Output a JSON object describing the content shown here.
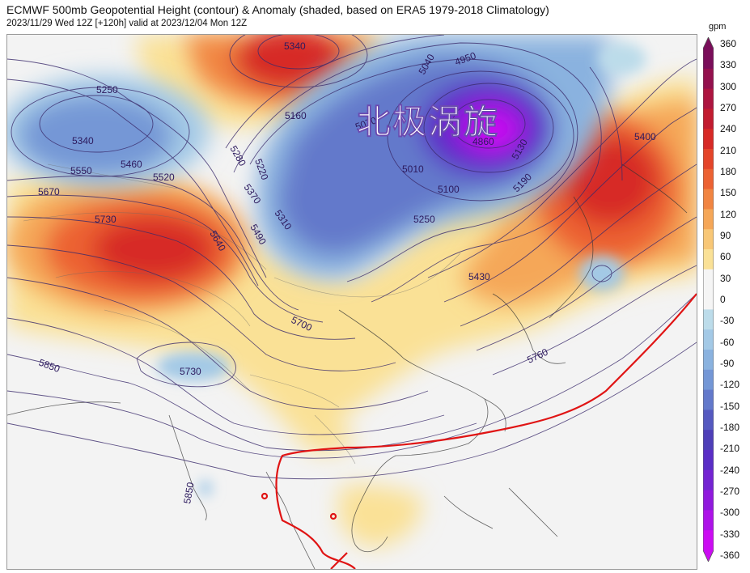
{
  "header": {
    "title": "ECMWF 500mb Geopotential Height (contour) & Anomaly (shaded, based on ERA5 1979-2018 Climatology)",
    "subtitle": "2023/11/29 Wed 12Z [+120h] valid at 2023/12/04 Mon 12Z"
  },
  "annotation": {
    "vortex_label": "北极涡旋"
  },
  "colorbar": {
    "unit": "gpm",
    "ticks": [
      "360",
      "330",
      "300",
      "270",
      "240",
      "210",
      "180",
      "150",
      "120",
      "90",
      "60",
      "30",
      "0",
      "-30",
      "-60",
      "-90",
      "-120",
      "-150",
      "-180",
      "-210",
      "-240",
      "-270",
      "-300",
      "-330",
      "-360"
    ],
    "colors": [
      "#7a0e5a",
      "#94114e",
      "#ad1540",
      "#c21c30",
      "#d72a26",
      "#e4452a",
      "#ec6233",
      "#f18542",
      "#f5a758",
      "#f8c776",
      "#fae196",
      "#f5f5f5",
      "#f5f5f5",
      "#bcdcea",
      "#a3c9e6",
      "#8ab2df",
      "#7497d6",
      "#6379cb",
      "#5559c0",
      "#4e3fb8",
      "#5a2dc6",
      "#7424d2",
      "#9019dd",
      "#ad12e8",
      "#cb0cf2"
    ]
  },
  "contour_labels": [
    {
      "id": "c5340-ne",
      "text": "5340"
    },
    {
      "id": "c5250-w",
      "text": "5250"
    },
    {
      "id": "c5340-w",
      "text": "5340"
    },
    {
      "id": "c5160",
      "text": "5160"
    },
    {
      "id": "c5070",
      "text": "5070"
    },
    {
      "id": "c4950",
      "text": "4950"
    },
    {
      "id": "c5040",
      "text": "5040"
    },
    {
      "id": "c4860",
      "text": "4860"
    },
    {
      "id": "c5010",
      "text": "5010"
    },
    {
      "id": "c5100",
      "text": "5100"
    },
    {
      "id": "c5130",
      "text": "5130"
    },
    {
      "id": "c5190",
      "text": "5190"
    },
    {
      "id": "c5400",
      "text": "5400"
    },
    {
      "id": "c5280",
      "text": "5280"
    },
    {
      "id": "c5220",
      "text": "5220"
    },
    {
      "id": "c5550",
      "text": "5550"
    },
    {
      "id": "c5460",
      "text": "5460"
    },
    {
      "id": "c5520",
      "text": "5520"
    },
    {
      "id": "c5670",
      "text": "5670"
    },
    {
      "id": "c5730-w",
      "text": "5730"
    },
    {
      "id": "c5370",
      "text": "5370"
    },
    {
      "id": "c5310",
      "text": "5310"
    },
    {
      "id": "c5490",
      "text": "5490"
    },
    {
      "id": "c5640",
      "text": "5640"
    },
    {
      "id": "c5250-c",
      "text": "5250"
    },
    {
      "id": "c5430",
      "text": "5430"
    },
    {
      "id": "c5700",
      "text": "5700"
    },
    {
      "id": "c5850-w",
      "text": "5850"
    },
    {
      "id": "c5730-s",
      "text": "5730"
    },
    {
      "id": "c5760",
      "text": "5760"
    },
    {
      "id": "c5850-s",
      "text": "5850"
    }
  ]
}
